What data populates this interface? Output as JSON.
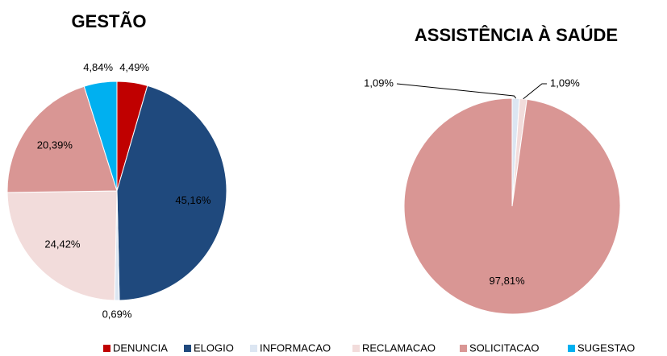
{
  "chart_data": [
    {
      "type": "pie",
      "title": "GESTÃO",
      "categories": [
        "DENUNCIA",
        "ELOGIO",
        "INFORMACAO",
        "RECLAMACAO",
        "SOLICITACAO",
        "SUGESTAO"
      ],
      "values": [
        4.49,
        45.16,
        0.69,
        24.42,
        20.39,
        4.84
      ],
      "value_labels": [
        "4,49%",
        "45,16%",
        "0,69%",
        "24,42%",
        "20,39%",
        "4,84%"
      ],
      "colors": [
        "#c00000",
        "#1f497d",
        "#dce6f2",
        "#f2dcdb",
        "#d99694",
        "#00b0f0"
      ]
    },
    {
      "type": "pie",
      "title": "ASSISTÊNCIA À SAÚDE",
      "categories": [
        "INFORMACAO",
        "RECLAMACAO",
        "SOLICITACAO"
      ],
      "values": [
        1.09,
        1.09,
        97.81
      ],
      "value_labels": [
        "1,09%",
        "1,09%",
        "97,81%"
      ],
      "colors": [
        "#dce6f2",
        "#f2dcdb",
        "#d99694"
      ]
    }
  ]
}
